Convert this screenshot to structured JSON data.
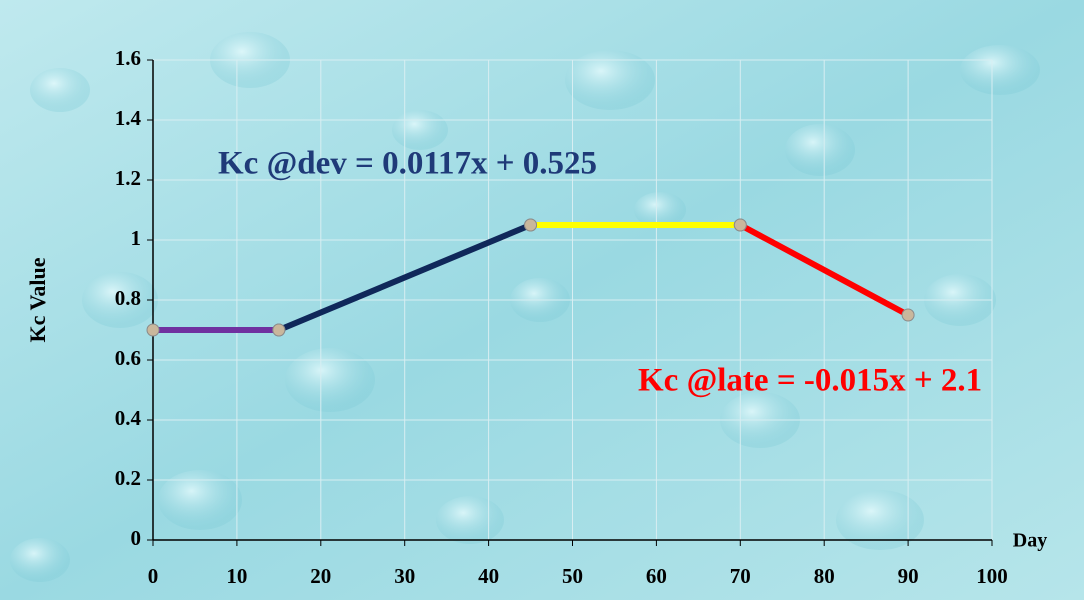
{
  "chart_data": {
    "type": "line",
    "ylabel": "Kc Value",
    "xlabel": "Day",
    "series": [
      {
        "color": "#7030a0",
        "x": [
          0,
          15
        ],
        "values": [
          0.7,
          0.7
        ]
      },
      {
        "color": "#10285a",
        "x": [
          15,
          45
        ],
        "values": [
          0.7,
          1.05
        ]
      },
      {
        "color": "#ffff00",
        "x": [
          45,
          70
        ],
        "values": [
          1.05,
          1.05
        ]
      },
      {
        "color": "#ff0000",
        "x": [
          70,
          90
        ],
        "values": [
          1.05,
          0.75
        ]
      }
    ],
    "marker_color": "#c9b79c",
    "annotations": [
      {
        "text": "Kc @dev = 0.0117x + 0.525",
        "color": "#1f3a78"
      },
      {
        "text": "Kc @late = -0.015x + 2.1",
        "color": "#ff0000"
      }
    ],
    "xlim": [
      0,
      100
    ],
    "xticks": [
      0,
      10,
      20,
      30,
      40,
      50,
      60,
      70,
      80,
      90,
      100
    ],
    "ylim": [
      0,
      1.6
    ],
    "yticks": [
      0,
      0.2,
      0.4,
      0.6,
      0.8,
      1,
      1.2,
      1.4,
      1.6
    ],
    "grid": true
  }
}
